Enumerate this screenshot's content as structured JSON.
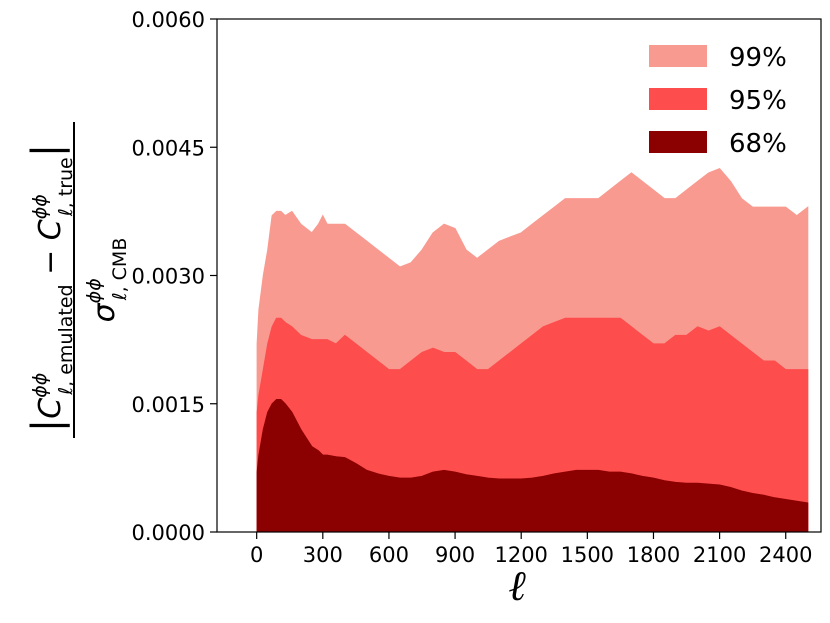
{
  "chart_data": {
    "type": "area",
    "xlabel": "ℓ",
    "ylabel": {
      "num_left": "|",
      "num_c1": "C",
      "num_sup1": "ϕϕ",
      "num_sub1": "ℓ, emulated",
      "num_minus": " − ",
      "num_c2": "C",
      "num_sup2": "ϕϕ",
      "num_sub2": "ℓ, true",
      "num_right": "|",
      "den_sigma": "σ",
      "den_sup": "ϕϕ",
      "den_sub": "ℓ, CMB"
    },
    "xlim": [
      -180,
      2560
    ],
    "ylim": [
      0.0,
      0.006
    ],
    "x_ticks": [
      0,
      300,
      600,
      900,
      1200,
      1500,
      1800,
      2100,
      2400
    ],
    "y_ticks": [
      0.0,
      0.0015,
      0.003,
      0.0045,
      0.006
    ],
    "y_tick_labels": [
      "0.0000",
      "0.0015",
      "0.0030",
      "0.0045",
      "0.0060"
    ],
    "legend_position": "top-right",
    "x": [
      2,
      10,
      30,
      50,
      70,
      90,
      110,
      130,
      160,
      200,
      250,
      280,
      300,
      320,
      360,
      400,
      450,
      500,
      550,
      600,
      650,
      700,
      750,
      800,
      850,
      900,
      950,
      1000,
      1050,
      1100,
      1150,
      1200,
      1250,
      1300,
      1350,
      1400,
      1450,
      1500,
      1550,
      1600,
      1650,
      1700,
      1750,
      1800,
      1850,
      1900,
      1950,
      2000,
      2050,
      2100,
      2150,
      2200,
      2250,
      2300,
      2350,
      2400,
      2450,
      2500
    ],
    "series": [
      {
        "name": "99%",
        "color": "#f99a90",
        "values": [
          0.0022,
          0.0026,
          0.003,
          0.0033,
          0.0037,
          0.00375,
          0.00375,
          0.0037,
          0.00375,
          0.0036,
          0.0035,
          0.0036,
          0.0037,
          0.0036,
          0.0036,
          0.0036,
          0.0035,
          0.0034,
          0.0033,
          0.0032,
          0.0031,
          0.00315,
          0.0033,
          0.0035,
          0.0036,
          0.00355,
          0.0033,
          0.0032,
          0.0033,
          0.0034,
          0.00345,
          0.0035,
          0.0036,
          0.0037,
          0.0038,
          0.0039,
          0.0039,
          0.0039,
          0.0039,
          0.004,
          0.0041,
          0.0042,
          0.0041,
          0.004,
          0.0039,
          0.0039,
          0.004,
          0.0041,
          0.0042,
          0.00425,
          0.0041,
          0.0039,
          0.0038,
          0.0038,
          0.0038,
          0.0038,
          0.0037,
          0.0038
        ]
      },
      {
        "name": "95%",
        "color": "#fd4d4d",
        "values": [
          0.0014,
          0.0016,
          0.0019,
          0.0022,
          0.0024,
          0.0025,
          0.0025,
          0.00245,
          0.0024,
          0.0023,
          0.00225,
          0.00225,
          0.00225,
          0.00225,
          0.0022,
          0.0023,
          0.0022,
          0.0021,
          0.002,
          0.0019,
          0.0019,
          0.002,
          0.0021,
          0.00215,
          0.0021,
          0.0021,
          0.002,
          0.0019,
          0.0019,
          0.002,
          0.0021,
          0.0022,
          0.0023,
          0.0024,
          0.00245,
          0.0025,
          0.0025,
          0.0025,
          0.0025,
          0.0025,
          0.0025,
          0.0024,
          0.0023,
          0.0022,
          0.0022,
          0.0023,
          0.0023,
          0.0024,
          0.00235,
          0.0024,
          0.0023,
          0.0022,
          0.0021,
          0.002,
          0.002,
          0.0019,
          0.0019,
          0.0019
        ]
      },
      {
        "name": "68%",
        "color": "#8b0000",
        "values": [
          0.0007,
          0.0009,
          0.0012,
          0.0014,
          0.0015,
          0.00155,
          0.00155,
          0.0015,
          0.0014,
          0.0012,
          0.001,
          0.00095,
          0.0009,
          0.0009,
          0.00088,
          0.00087,
          0.0008,
          0.00072,
          0.00068,
          0.00065,
          0.00063,
          0.00063,
          0.00065,
          0.0007,
          0.00072,
          0.0007,
          0.00067,
          0.00065,
          0.00063,
          0.00062,
          0.00062,
          0.00062,
          0.00063,
          0.00065,
          0.00068,
          0.0007,
          0.00072,
          0.00072,
          0.00072,
          0.0007,
          0.0007,
          0.00068,
          0.00065,
          0.00063,
          0.0006,
          0.00058,
          0.00057,
          0.00057,
          0.00056,
          0.00055,
          0.00052,
          0.00048,
          0.00045,
          0.00043,
          0.0004,
          0.00038,
          0.00036,
          0.00034
        ]
      }
    ]
  }
}
